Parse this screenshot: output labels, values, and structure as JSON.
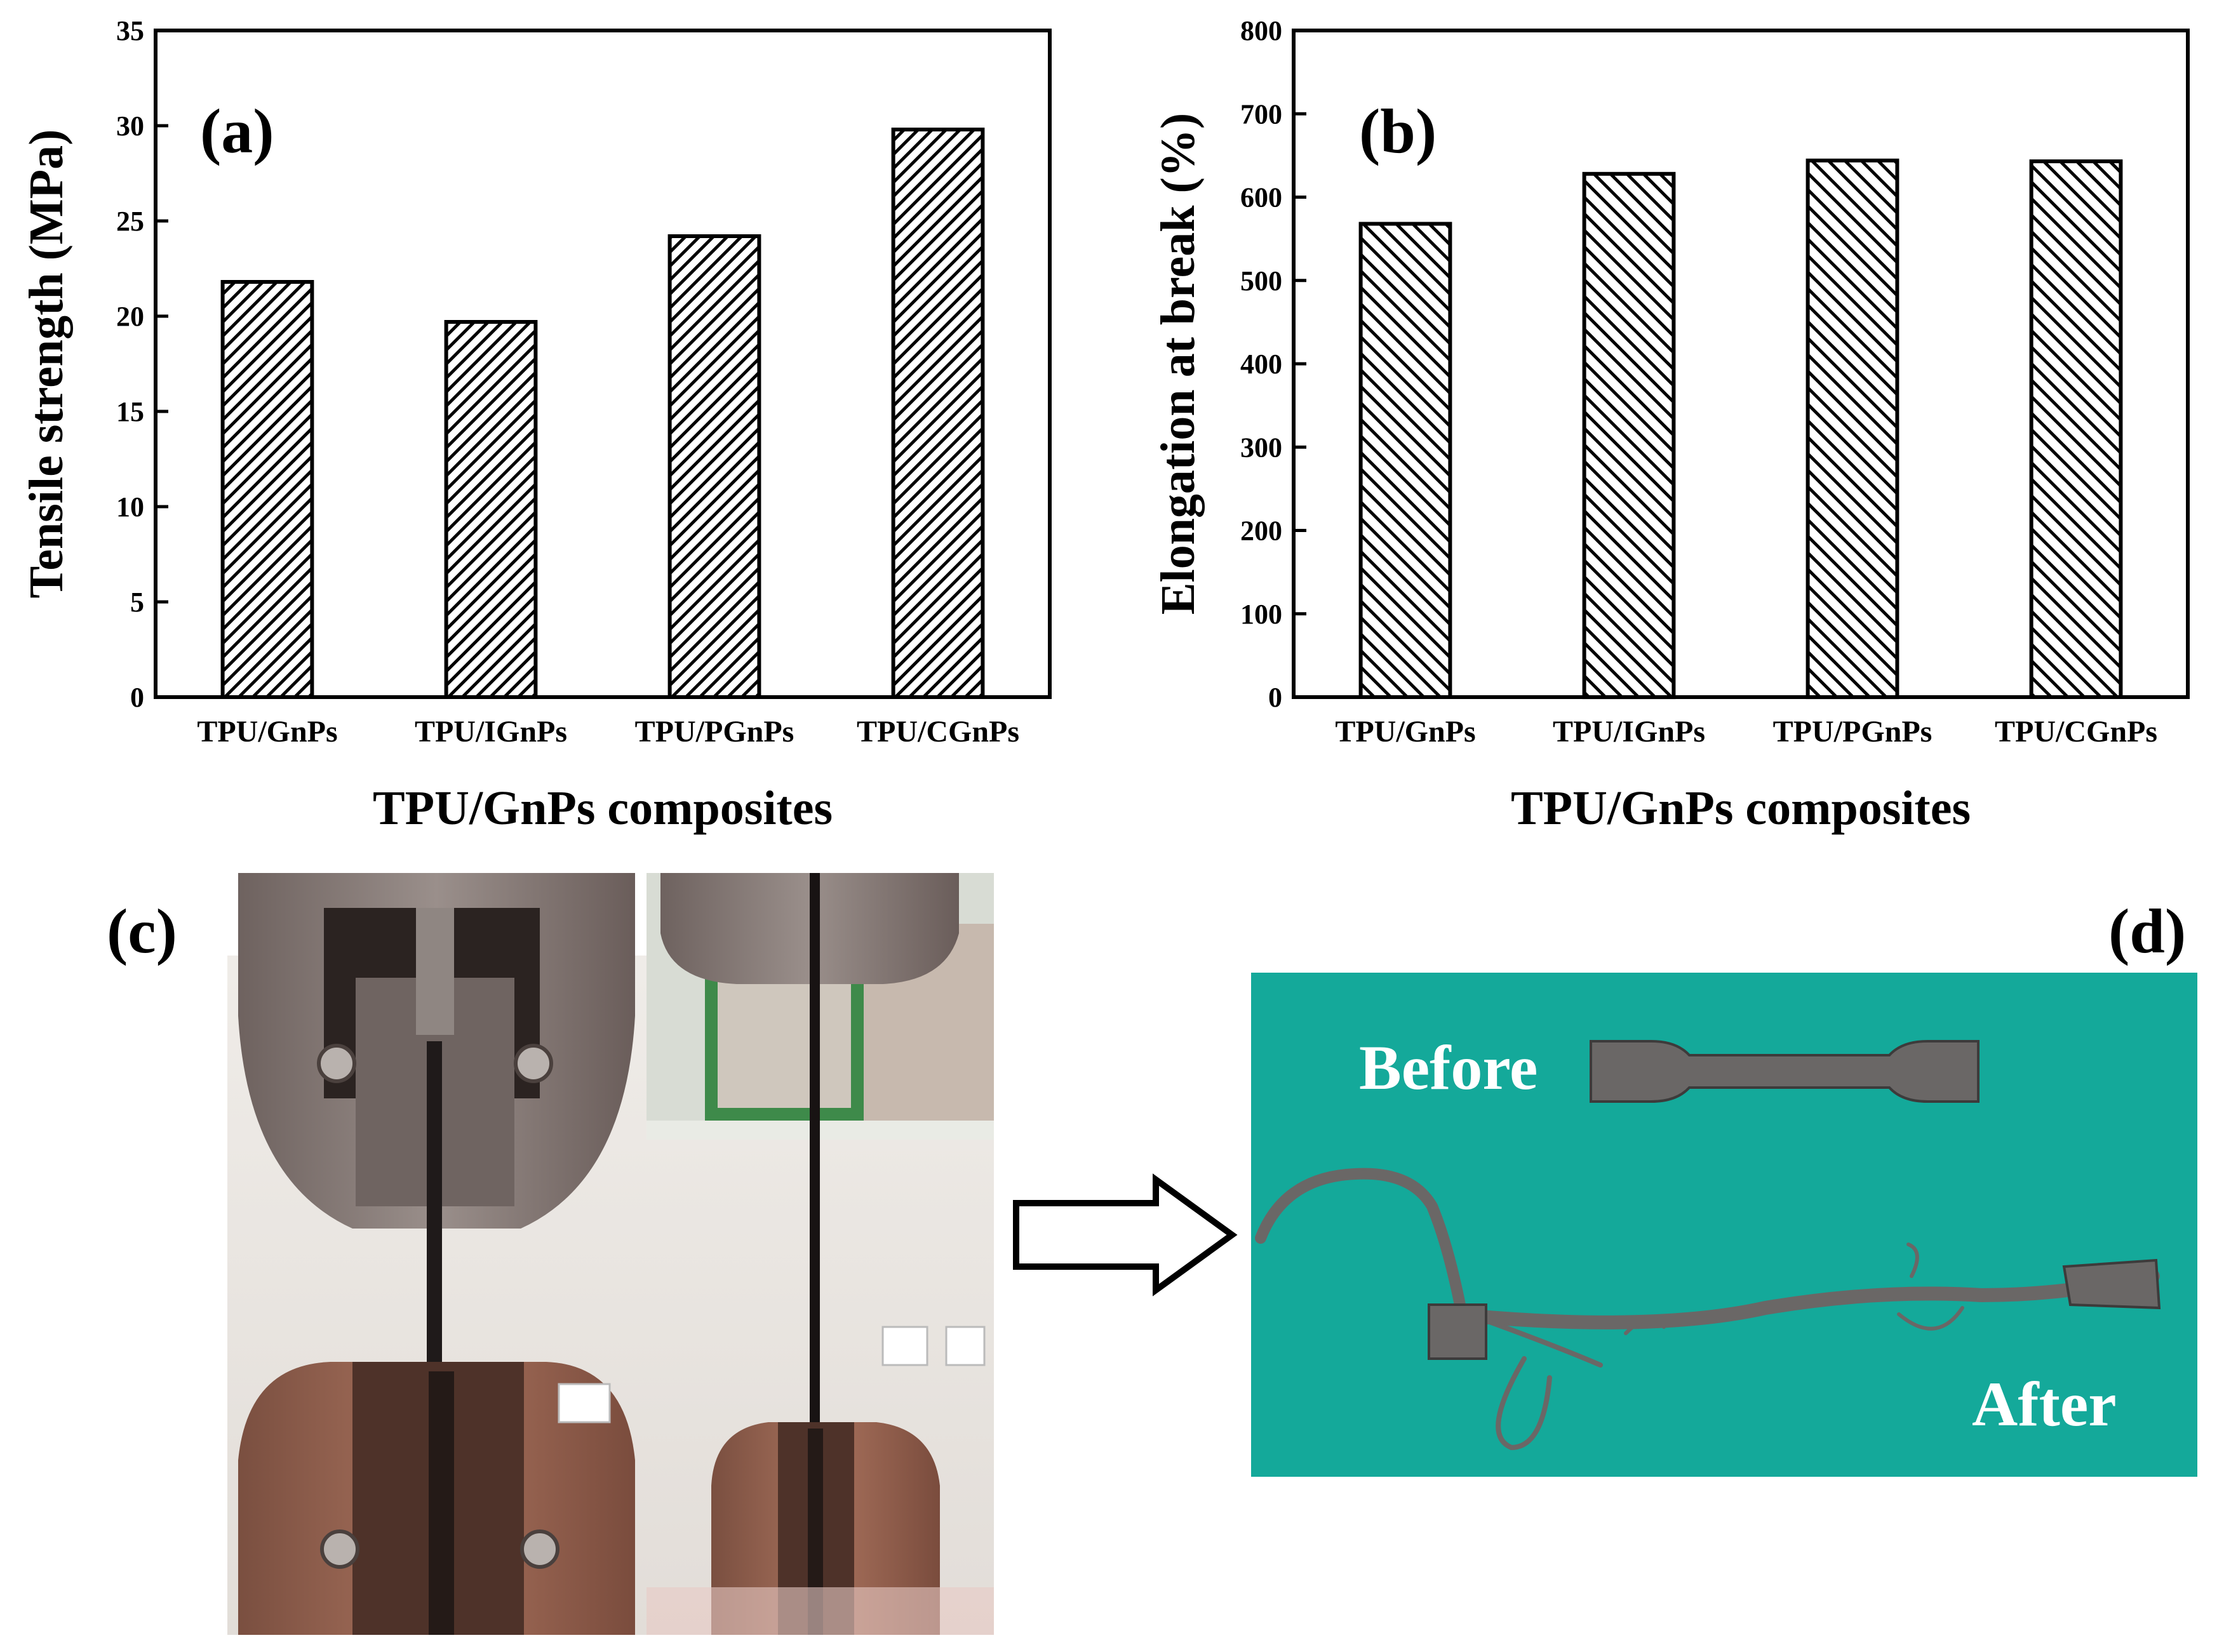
{
  "chart_data": [
    {
      "type": "bar",
      "panel": "(a)",
      "categories": [
        "TPU/GnPs",
        "TPU/IGnPs",
        "TPU/PGnPs",
        "TPU/CGnPs"
      ],
      "values": [
        21.8,
        19.7,
        24.2,
        29.8
      ],
      "xlabel": "TPU/GnPs composites",
      "ylabel": "Tensile strength (MPa)",
      "ylim": [
        0,
        35
      ],
      "yticks": [
        0,
        5,
        10,
        15,
        20,
        25,
        30,
        35
      ],
      "hatch": "forward-diagonal",
      "grid": false
    },
    {
      "type": "bar",
      "panel": "(b)",
      "categories": [
        "TPU/GnPs",
        "TPU/IGnPs",
        "TPU/PGnPs",
        "TPU/CGnPs"
      ],
      "values": [
        568,
        628,
        644,
        643
      ],
      "xlabel": "TPU/GnPs composites",
      "ylabel": "Elongation at break (%)",
      "ylim": [
        0,
        800
      ],
      "yticks": [
        0,
        100,
        200,
        300,
        400,
        500,
        600,
        700,
        800
      ],
      "hatch": "back-diagonal",
      "grid": false
    }
  ],
  "panels": {
    "c": {
      "label": "(c)"
    },
    "d": {
      "label": "(d)",
      "before_text": "Before",
      "after_text": "After"
    }
  },
  "colors": {
    "photo_bg": "#14a99a",
    "grip": "#8c7f7c",
    "grip_dark": "#3a302e"
  }
}
